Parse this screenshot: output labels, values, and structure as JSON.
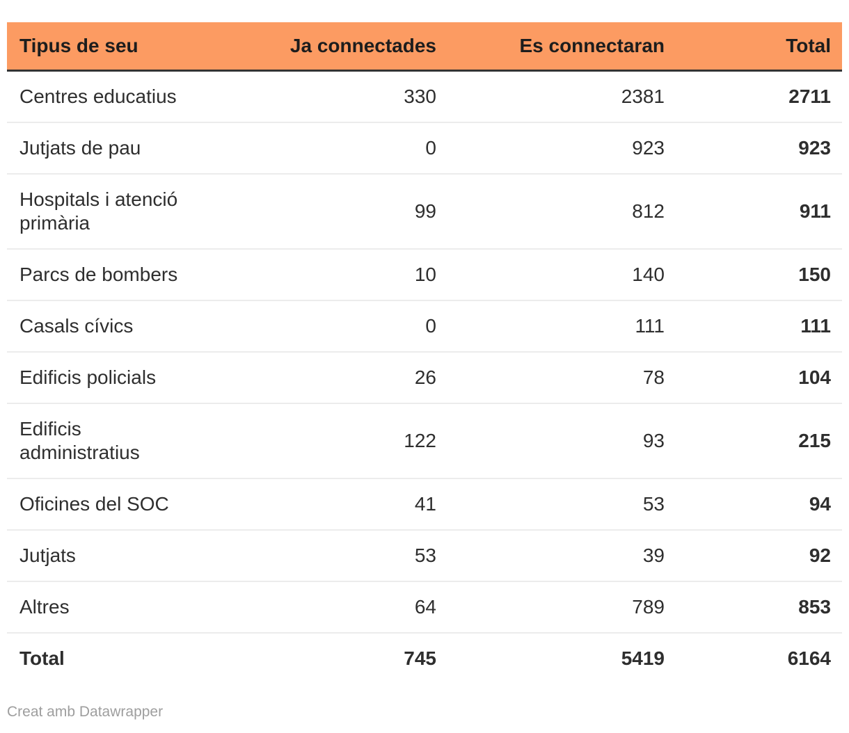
{
  "colors": {
    "header_bg": "#fc9b62",
    "header_text": "#1d1d1d",
    "header_border": "#333333",
    "body_text": "#2e2e2e",
    "row_divider": "#ececec",
    "footer_text": "#9e9e9e",
    "page_bg": "#ffffff"
  },
  "table": {
    "columns": [
      {
        "label": "Tipus de seu"
      },
      {
        "label": "Ja connectades"
      },
      {
        "label": "Es connectaran"
      },
      {
        "label": "Total"
      }
    ],
    "rows": [
      {
        "tipus": "Centres educatius",
        "ja_connectades": "330",
        "es_connectaran": "2381",
        "total": "2711"
      },
      {
        "tipus": "Jutjats de pau",
        "ja_connectades": "0",
        "es_connectaran": "923",
        "total": "923"
      },
      {
        "tipus": "Hospitals i atenció primària",
        "ja_connectades": "99",
        "es_connectaran": "812",
        "total": "911"
      },
      {
        "tipus": "Parcs de bombers",
        "ja_connectades": "10",
        "es_connectaran": "140",
        "total": "150"
      },
      {
        "tipus": "Casals cívics",
        "ja_connectades": "0",
        "es_connectaran": "111",
        "total": "111"
      },
      {
        "tipus": "Edificis policials",
        "ja_connectades": "26",
        "es_connectaran": "78",
        "total": "104"
      },
      {
        "tipus": "Edificis administratius",
        "ja_connectades": "122",
        "es_connectaran": "93",
        "total": "215"
      },
      {
        "tipus": "Oficines del SOC",
        "ja_connectades": "41",
        "es_connectaran": "53",
        "total": "94"
      },
      {
        "tipus": "Jutjats",
        "ja_connectades": "53",
        "es_connectaran": "39",
        "total": "92"
      },
      {
        "tipus": "Altres",
        "ja_connectades": "64",
        "es_connectaran": "789",
        "total": "853"
      }
    ],
    "total_row": {
      "tipus": "Total",
      "ja_connectades": "745",
      "es_connectaran": "5419",
      "total": "6164"
    }
  },
  "footer": {
    "credit": "Creat amb Datawrapper"
  },
  "chart_data": {
    "type": "table",
    "columns": [
      "Tipus de seu",
      "Ja connectades",
      "Es connectaran",
      "Total"
    ],
    "rows": [
      [
        "Centres educatius",
        330,
        2381,
        2711
      ],
      [
        "Jutjats de pau",
        0,
        923,
        923
      ],
      [
        "Hospitals i atenció primària",
        99,
        812,
        911
      ],
      [
        "Parcs de bombers",
        10,
        140,
        150
      ],
      [
        "Casals cívics",
        0,
        111,
        111
      ],
      [
        "Edificis policials",
        26,
        78,
        104
      ],
      [
        "Edificis administratius",
        122,
        93,
        215
      ],
      [
        "Oficines del SOC",
        41,
        53,
        94
      ],
      [
        "Jutjats",
        53,
        39,
        92
      ],
      [
        "Altres",
        64,
        789,
        853
      ],
      [
        "Total",
        745,
        5419,
        6164
      ]
    ],
    "layout_hints": {
      "header_background": "#fc9b62",
      "numeric_columns_right_aligned": true,
      "total_column_bold": true,
      "total_row_bold": true
    }
  }
}
